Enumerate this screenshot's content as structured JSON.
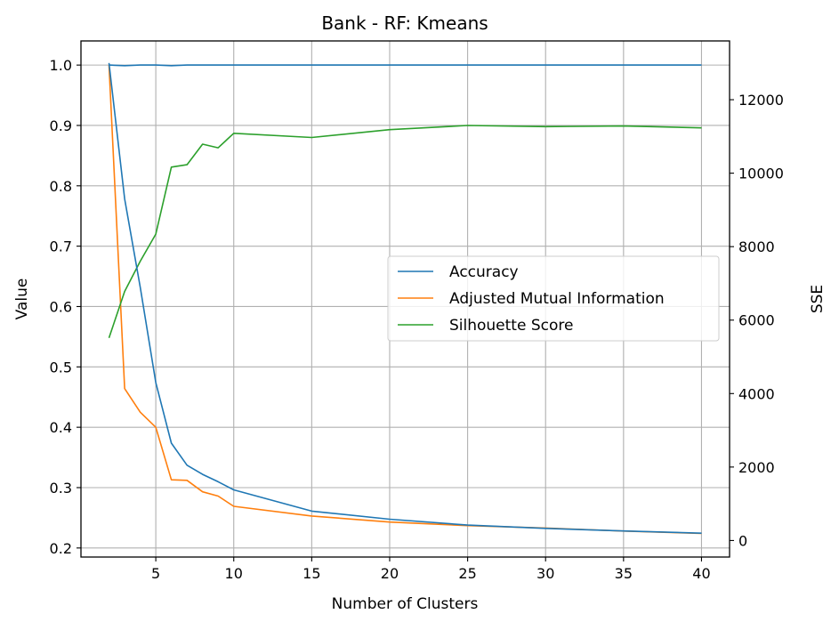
{
  "chart_data": {
    "type": "line",
    "title": "Bank - RF: Kmeans",
    "xlabel": "Number of Clusters",
    "ylabel": "Value",
    "y2label": "SSE",
    "xlim": [
      0.2,
      41.8
    ],
    "ylim": [
      0.185,
      1.04
    ],
    "y2lim": [
      -450,
      13600
    ],
    "x_ticks": [
      5,
      10,
      15,
      20,
      25,
      30,
      35,
      40
    ],
    "y_ticks": [
      0.2,
      0.3,
      0.4,
      0.5,
      0.6,
      0.7,
      0.8,
      0.9,
      1.0
    ],
    "y2_ticks": [
      0,
      2000,
      4000,
      6000,
      8000,
      10000,
      12000
    ],
    "y_tick_labels": [
      "0.2",
      "0.3",
      "0.4",
      "0.5",
      "0.6",
      "0.7",
      "0.8",
      "0.9",
      "1.0"
    ],
    "grid": true,
    "legend_position": "center-right",
    "x": [
      2,
      3,
      4,
      5,
      6,
      7,
      8,
      9,
      10,
      15,
      20,
      25,
      30,
      35,
      40
    ],
    "series": [
      {
        "name": "Accuracy",
        "axis": "left",
        "color": "#1f77b4",
        "values": [
          1.0,
          0.999,
          1.0,
          1.0,
          0.999,
          1.0,
          1.0,
          1.0,
          1.0,
          1.0,
          1.0,
          1.0,
          1.0,
          1.0,
          1.0
        ]
      },
      {
        "name": "Adjusted Mutual Information",
        "axis": "left",
        "color": "#ff7f0e",
        "values": [
          1.0,
          0.464,
          0.425,
          0.4,
          0.313,
          0.312,
          0.293,
          0.286,
          0.269,
          0.253,
          0.243,
          0.237,
          0.233,
          0.228,
          0.224
        ]
      },
      {
        "name": "Silhouette Score",
        "axis": "left",
        "color": "#2ca02c",
        "values": [
          0.548,
          0.625,
          0.675,
          0.72,
          0.831,
          0.835,
          0.869,
          0.863,
          0.887,
          0.88,
          0.893,
          0.9,
          0.898,
          0.899,
          0.896
        ]
      },
      {
        "name": "SSE",
        "axis": "right",
        "color": "#1f77b4",
        "values": [
          13000,
          9300,
          6900,
          4300,
          2650,
          2050,
          1800,
          1600,
          1380,
          800,
          580,
          420,
          330,
          260,
          200
        ]
      }
    ]
  }
}
